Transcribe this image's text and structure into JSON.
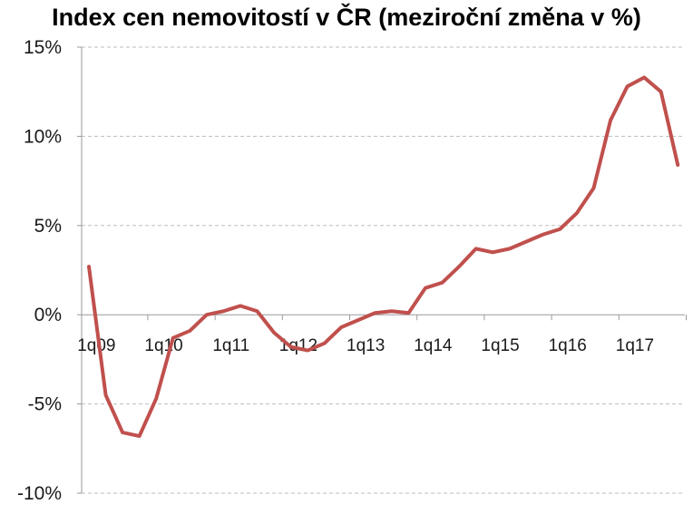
{
  "chart_data": {
    "type": "line",
    "title": "Index cen nemovitostí v ČR (meziroční změna v %)",
    "xlabel": "",
    "ylabel": "",
    "ylim": [
      -10,
      15
    ],
    "y_ticks": [
      -10,
      -5,
      0,
      5,
      10,
      15
    ],
    "y_tick_labels": [
      "-10%",
      "-5%",
      "0%",
      "5%",
      "10%",
      "15%"
    ],
    "x_tick_labels": [
      "1q09",
      "1q10",
      "1q11",
      "1q12",
      "1q13",
      "1q14",
      "1q15",
      "1q16",
      "1q17"
    ],
    "grid": true,
    "x": [
      "1q09",
      "2q09",
      "3q09",
      "4q09",
      "1q10",
      "2q10",
      "3q10",
      "4q10",
      "1q11",
      "2q11",
      "3q11",
      "4q11",
      "1q12",
      "2q12",
      "3q12",
      "4q12",
      "1q13",
      "2q13",
      "3q13",
      "4q13",
      "1q14",
      "2q14",
      "3q14",
      "4q14",
      "1q15",
      "2q15",
      "3q15",
      "4q15",
      "1q16",
      "2q16",
      "3q16",
      "4q16",
      "1q17",
      "2q17",
      "3q17",
      "4q17"
    ],
    "series": [
      {
        "color": "#c0504d",
        "values": [
          2.7,
          -4.5,
          -6.6,
          -6.8,
          -4.7,
          -1.3,
          -0.9,
          0.0,
          0.2,
          0.5,
          0.2,
          -1.0,
          -1.8,
          -2.0,
          -1.6,
          -0.7,
          -0.3,
          0.1,
          0.2,
          0.1,
          1.5,
          1.8,
          2.7,
          3.7,
          3.5,
          3.7,
          4.1,
          4.5,
          4.8,
          5.7,
          7.1,
          10.9,
          12.8,
          13.3,
          12.5,
          8.4
        ]
      }
    ]
  }
}
